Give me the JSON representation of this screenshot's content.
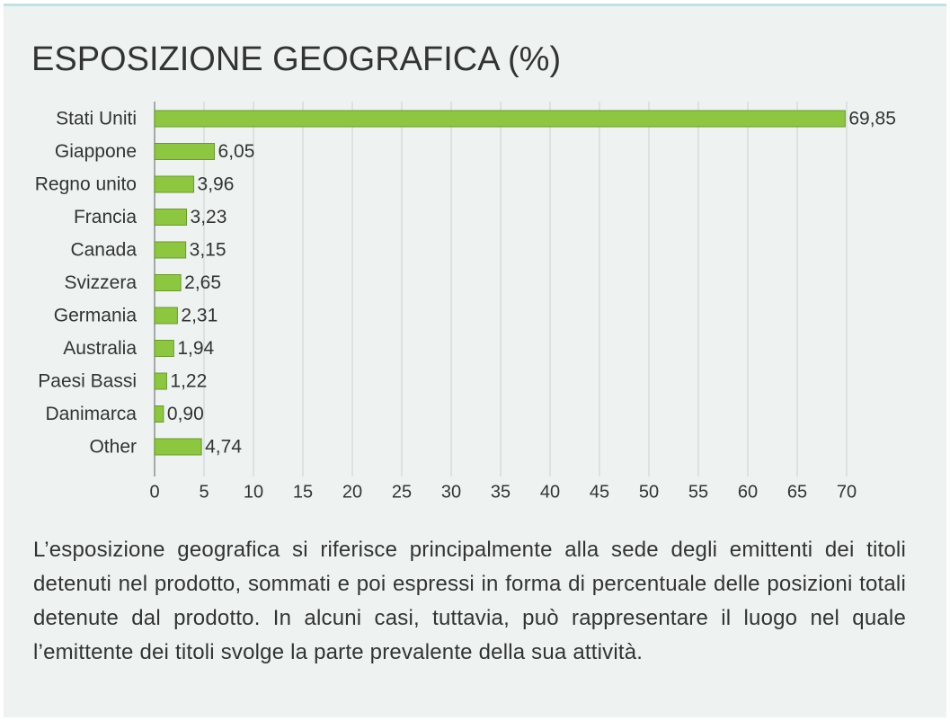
{
  "chart_data": {
    "type": "bar",
    "orientation": "horizontal",
    "title": "ESPOSIZIONE GEOGRAFICA (%)",
    "categories": [
      "Stati Uniti",
      "Giappone",
      "Regno unito",
      "Francia",
      "Canada",
      "Svizzera",
      "Germania",
      "Australia",
      "Paesi Bassi",
      "Danimarca",
      "Other"
    ],
    "values": [
      69.85,
      6.05,
      3.96,
      3.23,
      3.15,
      2.65,
      2.31,
      1.94,
      1.22,
      0.9,
      4.74
    ],
    "value_labels": [
      "69,85",
      "6,05",
      "3,96",
      "3,23",
      "3,15",
      "2,65",
      "2,31",
      "1,94",
      "1,22",
      "0,90",
      "4,74"
    ],
    "color": "#8dc63f",
    "xlim": [
      0,
      70
    ],
    "xticks": [
      0,
      5,
      10,
      15,
      20,
      25,
      30,
      35,
      40,
      45,
      50,
      55,
      60,
      65,
      70
    ],
    "grid": true
  },
  "description": "L’esposizione geografica si riferisce principalmente alla sede degli emittenti dei titoli detenuti nel prodotto, sommati e poi espressi in forma di percentuale delle posizioni totali detenute dal prodotto. In alcuni casi, tuttavia, può rappresentare il luogo nel quale l’emittente dei titoli svolge la parte prevalente della sua attività."
}
